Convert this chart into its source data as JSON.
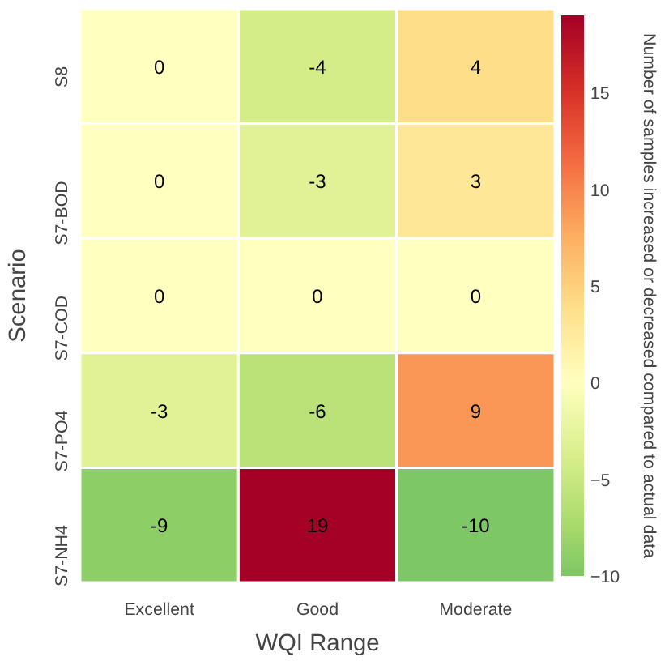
{
  "chart_data": {
    "type": "heatmap",
    "xlabel": "WQI Range",
    "ylabel": "Scenario",
    "clabel": "Number of samples increased or decreased compared to actual data",
    "categories": [
      "Excellent",
      "Good",
      "Moderate"
    ],
    "y_categories": [
      "S8",
      "S7-BOD",
      "S7-COD",
      "S7-PO4",
      "S7-NH4"
    ],
    "cells": [
      [
        0,
        -4,
        4
      ],
      [
        0,
        -3,
        3
      ],
      [
        0,
        0,
        0
      ],
      [
        -3,
        -6,
        9
      ],
      [
        -9,
        19,
        -10
      ]
    ],
    "data_labels": true,
    "clim": [
      -10,
      19
    ],
    "cticks": [
      {
        "value": -10,
        "label": "−10"
      },
      {
        "value": -5,
        "label": "−5"
      },
      0,
      5,
      10,
      15
    ]
  }
}
